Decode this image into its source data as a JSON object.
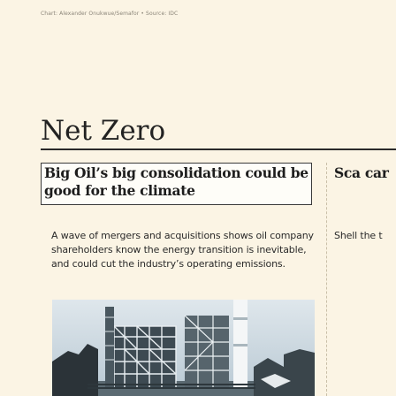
{
  "credit": "Chart: Alexander Onukwue/Semafor • Source: IDC",
  "section": {
    "title": "Net Zero"
  },
  "cards": {
    "main": {
      "headline": "Big Oil’s big consolidation could be good for the climate",
      "excerpt": "A wave of mergers and acquisitions shows oil company shareholders know the energy transition is inevitable, and could cut the industry’s operating emissions.",
      "image_alt": "oil refinery illustration"
    },
    "side": {
      "headline": "Sca car",
      "excerpt": "Shell the t"
    }
  },
  "colors": {
    "background": "#fbf4e4",
    "rule": "#2a2a2a",
    "divider": "#c9bfa8",
    "headline_box": "#fefdf8"
  }
}
